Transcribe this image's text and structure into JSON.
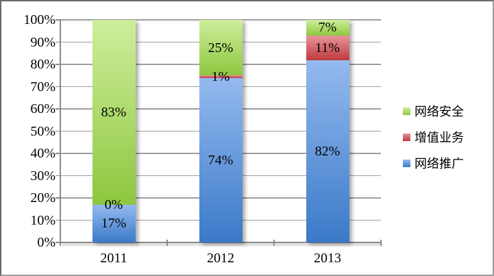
{
  "chart": {
    "background": "#FFFFFF",
    "frame_border_color": "#808080",
    "gridline_color": "#9E9E9E",
    "axis_color": "#878787"
  },
  "chart_data": {
    "type": "bar",
    "subtype": "stacked-100-percent-column",
    "title": "",
    "xlabel": "",
    "ylabel": "",
    "grid": true,
    "categories": [
      "2011",
      "2012",
      "2013"
    ],
    "series": [
      {
        "name": "网络推广",
        "values": [
          17,
          74,
          82
        ],
        "labels": [
          "17%",
          "74%",
          "82%"
        ],
        "color_top": "#94BAEF",
        "color_bottom": "#3A79C8"
      },
      {
        "name": "增值业务",
        "values": [
          0,
          1,
          11
        ],
        "labels": [
          "0%",
          "1%",
          "11%"
        ],
        "color_top": "#E89499",
        "color_bottom": "#BE3A3E"
      },
      {
        "name": "网络安全",
        "values": [
          83,
          25,
          7
        ],
        "labels": [
          "83%",
          "25%",
          "7%"
        ],
        "color_top": "#CDEE9C",
        "color_bottom": "#8EC73F"
      }
    ],
    "y_ticks": [
      "0%",
      "10%",
      "20%",
      "30%",
      "40%",
      "50%",
      "60%",
      "70%",
      "80%",
      "90%",
      "100%"
    ],
    "ylim": [
      0,
      100
    ],
    "legend_position": "right",
    "legend_order": [
      "网络安全",
      "增值业务",
      "网络推广"
    ]
  }
}
